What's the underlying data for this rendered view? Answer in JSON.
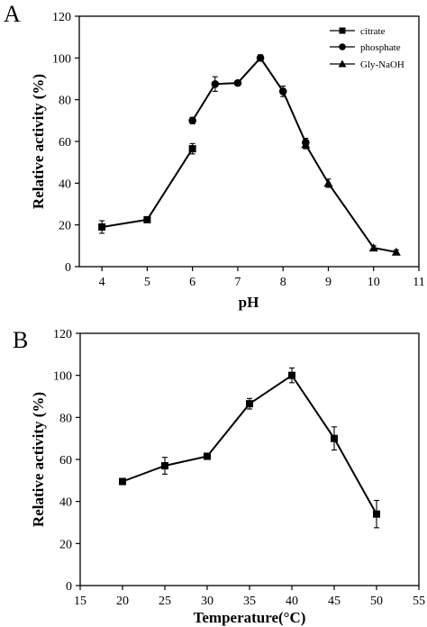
{
  "chart_data": [
    {
      "panel": "A",
      "type": "line",
      "xlabel": "pH",
      "ylabel": "Relative activity (%)",
      "xlim": [
        3.5,
        11
      ],
      "ylim": [
        0,
        120
      ],
      "xticks": [
        4,
        5,
        6,
        7,
        8,
        9,
        10,
        11
      ],
      "yticks": [
        0,
        20,
        40,
        60,
        80,
        100,
        120
      ],
      "legend_position": "top-right",
      "series": [
        {
          "name": "citrate",
          "marker": "square",
          "x": [
            4,
            5,
            6
          ],
          "y": [
            19,
            22.5,
            56.5
          ],
          "err": [
            3,
            1,
            2.5
          ]
        },
        {
          "name": "phosphate",
          "marker": "circle",
          "x": [
            6,
            6.5,
            7,
            7.5,
            8,
            8.5
          ],
          "y": [
            70,
            87.5,
            88,
            100,
            84,
            59.5
          ],
          "err": [
            1.5,
            3.5,
            1,
            1.5,
            2.5,
            2
          ]
        },
        {
          "name": "Gly-NaOH",
          "marker": "triangle",
          "x": [
            8.5,
            9,
            10,
            10.5
          ],
          "y": [
            58.5,
            40,
            9,
            7
          ],
          "err": [
            2,
            2,
            1,
            1
          ]
        }
      ]
    },
    {
      "panel": "B",
      "type": "line",
      "xlabel": "Temperature(°C)",
      "ylabel": "Relative activity (%)",
      "xlim": [
        15,
        55
      ],
      "ylim": [
        0,
        120
      ],
      "xticks": [
        15,
        20,
        25,
        30,
        35,
        40,
        45,
        50,
        55
      ],
      "xtick_labels": [
        "15",
        "20",
        "25",
        "30",
        "35",
        "40",
        "45",
        "50",
        "55"
      ],
      "yticks": [
        0,
        20,
        40,
        60,
        80,
        100,
        120
      ],
      "series": [
        {
          "marker": "square",
          "x": [
            20,
            25,
            30,
            35,
            40,
            45,
            50
          ],
          "y": [
            49.5,
            57,
            61.5,
            86.5,
            100,
            70,
            34
          ],
          "err": [
            1.5,
            4,
            1.5,
            2.5,
            3.5,
            5.5,
            6.5
          ]
        }
      ]
    }
  ]
}
